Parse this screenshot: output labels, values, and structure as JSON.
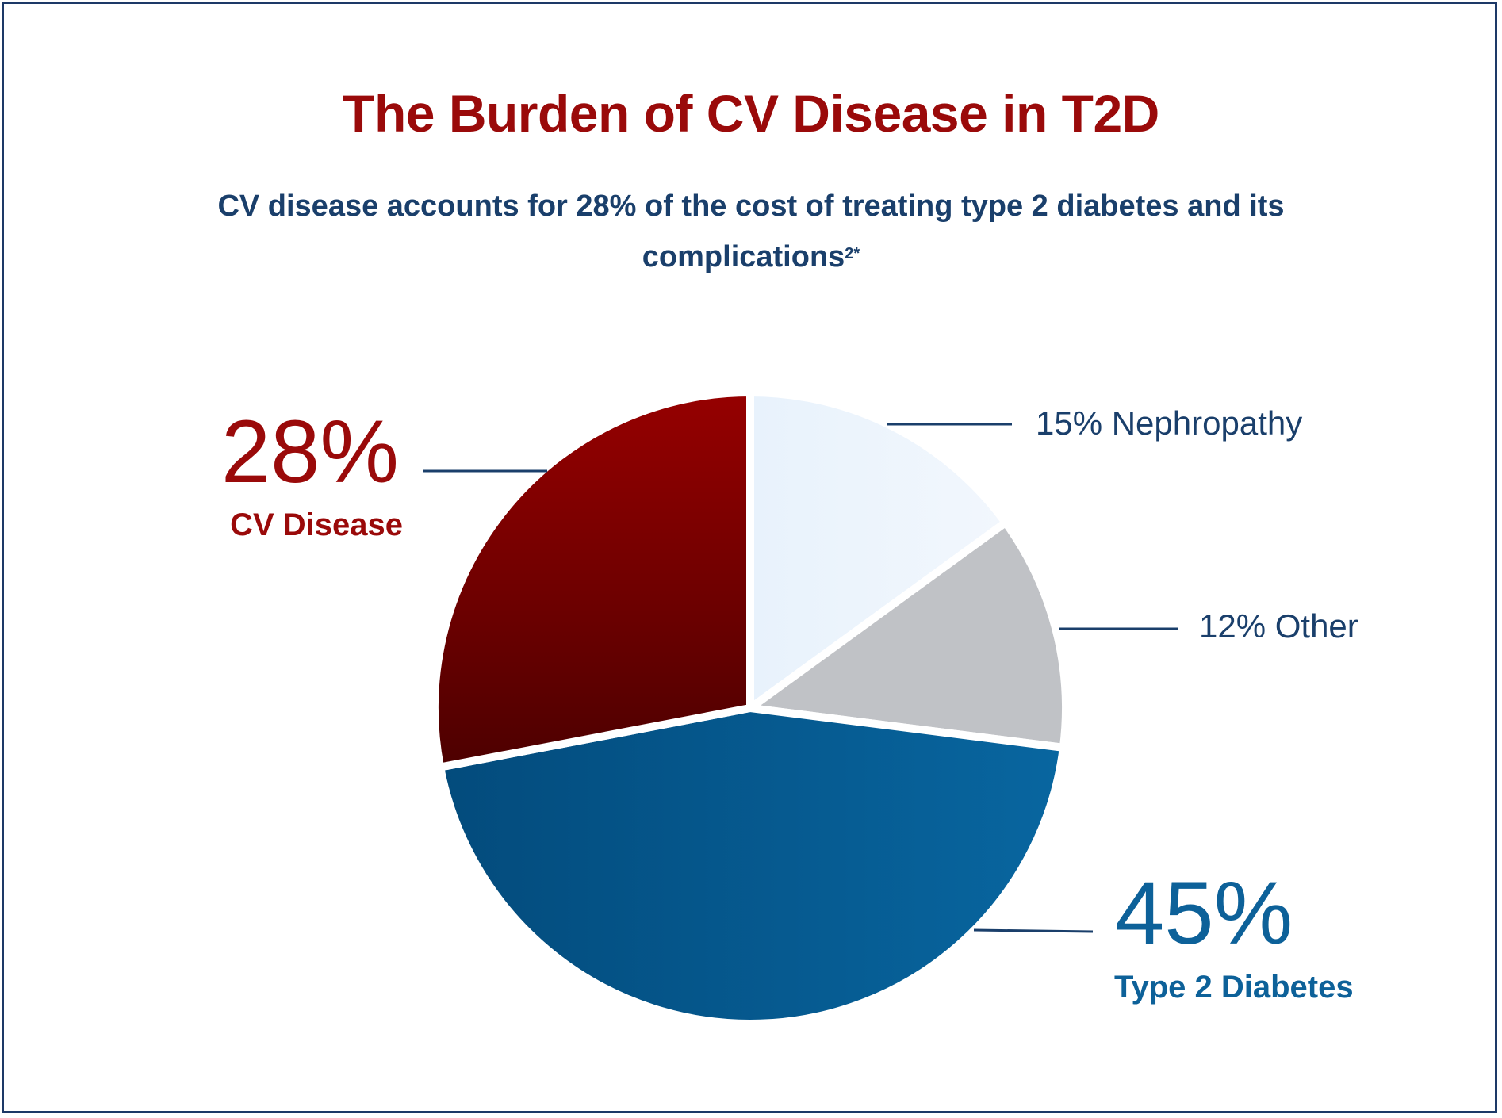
{
  "chart_data": {
    "type": "pie",
    "title": "The Burden of CV Disease in T2D",
    "subtitle": "CV disease accounts for 28% of the cost of treating type 2 diabetes and its complications",
    "subtitle_superscript": "2*",
    "slices": [
      {
        "name": "Nephropathy",
        "value": 15,
        "pct_label": "15%",
        "label": "15% Nephropathy",
        "color": "#edf4fc"
      },
      {
        "name": "Other",
        "value": 12,
        "pct_label": "12%",
        "label": "12% Other",
        "color": "#c0c2c6"
      },
      {
        "name": "Type 2 Diabetes",
        "value": 45,
        "pct_label": "45%",
        "label": "Type 2 Diabetes",
        "color": "#0a5a8e"
      },
      {
        "name": "CV Disease",
        "value": 28,
        "pct_label": "28%",
        "label": "CV Disease",
        "color": "#7a0000"
      }
    ]
  },
  "colors": {
    "title": "#9a0a0a",
    "subtitle": "#1a3f6b",
    "border": "#1d3967"
  }
}
